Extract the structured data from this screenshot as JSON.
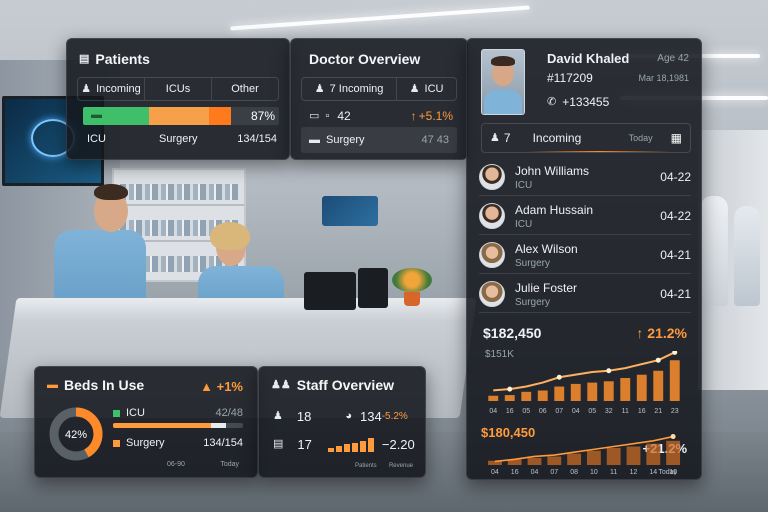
{
  "patients": {
    "title": "Patients",
    "tabs": [
      "Incoming",
      "ICUs",
      "Other"
    ],
    "bar_percent": "87%",
    "row": {
      "left": "ICU",
      "mid": "Surgery",
      "right": "134/154"
    }
  },
  "doctor_overview": {
    "title": "Doctor Overview",
    "tab_incoming": "7 Incoming",
    "tab_icu": "ICU",
    "stat_value": "42",
    "stat_change": "+5.1%",
    "surgery_label": "Surgery",
    "surgery_value": "47 43"
  },
  "profile": {
    "name": "David Khaled",
    "age": "Age 42",
    "id": "#117209",
    "dob": "Mar 18,1981",
    "phone": "+133455",
    "incoming_count": "7",
    "incoming_label": "Incoming",
    "today_label": "Today"
  },
  "doctors": [
    {
      "name": "John Williams",
      "dept": "ICU",
      "date": "04-22",
      "gender": "m"
    },
    {
      "name": "Adam Hussain",
      "dept": "ICU",
      "date": "04-22",
      "gender": "m"
    },
    {
      "name": "Alex Wilson",
      "dept": "Surgery",
      "date": "04-21",
      "gender": "f"
    },
    {
      "name": "Julie Foster",
      "dept": "Surgery",
      "date": "04-21",
      "gender": "f"
    }
  ],
  "revenue": {
    "total": "$182,450",
    "change": "21.2%",
    "sub": "$151K",
    "ticks": [
      "04",
      "16",
      "05",
      "06",
      "07",
      "04",
      "05",
      "32",
      "11",
      "16",
      "21",
      "23"
    ]
  },
  "revenue2": {
    "total": "$180,450",
    "change": "+21.2%",
    "ticks": [
      "04",
      "16",
      "04",
      "07",
      "08",
      "10",
      "11",
      "12",
      "14",
      "16"
    ],
    "today": "Today"
  },
  "beds": {
    "title": "Beds In Use",
    "change": "+1%",
    "donut_label": "42%",
    "rows": [
      {
        "label": "ICU",
        "value": "42/48"
      },
      {
        "label": "Surgery",
        "value": "134/154"
      }
    ],
    "foot_left": "06-90",
    "foot_right": "Today"
  },
  "staff": {
    "title": "Staff Overview",
    "stat1": "18",
    "stat2": "134",
    "stat2_change": "-5.2%",
    "stat3": "17",
    "stat4": "−2.20",
    "foot_left": "Patients",
    "foot_right": "Revenue"
  },
  "colors": {
    "accent": "#ff9a3d",
    "green": "#3fbf6a",
    "panel": "#14181e"
  },
  "chart_data": [
    {
      "type": "bar",
      "title": "$182,450",
      "categories": [
        "04",
        "16",
        "05",
        "06",
        "07",
        "04",
        "05",
        "32",
        "11",
        "16",
        "21",
        "23"
      ],
      "values": [
        8,
        9,
        14,
        16,
        22,
        26,
        28,
        30,
        35,
        40,
        46,
        62
      ],
      "line": [
        10,
        12,
        16,
        22,
        30,
        34,
        38,
        40,
        44,
        50,
        56,
        68
      ],
      "ylim": [
        0,
        70
      ]
    },
    {
      "type": "area",
      "title": "$180,450",
      "categories": [
        "04",
        "16",
        "04",
        "07",
        "08",
        "10",
        "11",
        "12",
        "14",
        "16"
      ],
      "values": [
        6,
        8,
        10,
        12,
        16,
        20,
        24,
        26,
        30,
        34
      ],
      "line": [
        5,
        8,
        12,
        14,
        18,
        22,
        26,
        30,
        34,
        40
      ],
      "ylim": [
        0,
        45
      ]
    }
  ]
}
